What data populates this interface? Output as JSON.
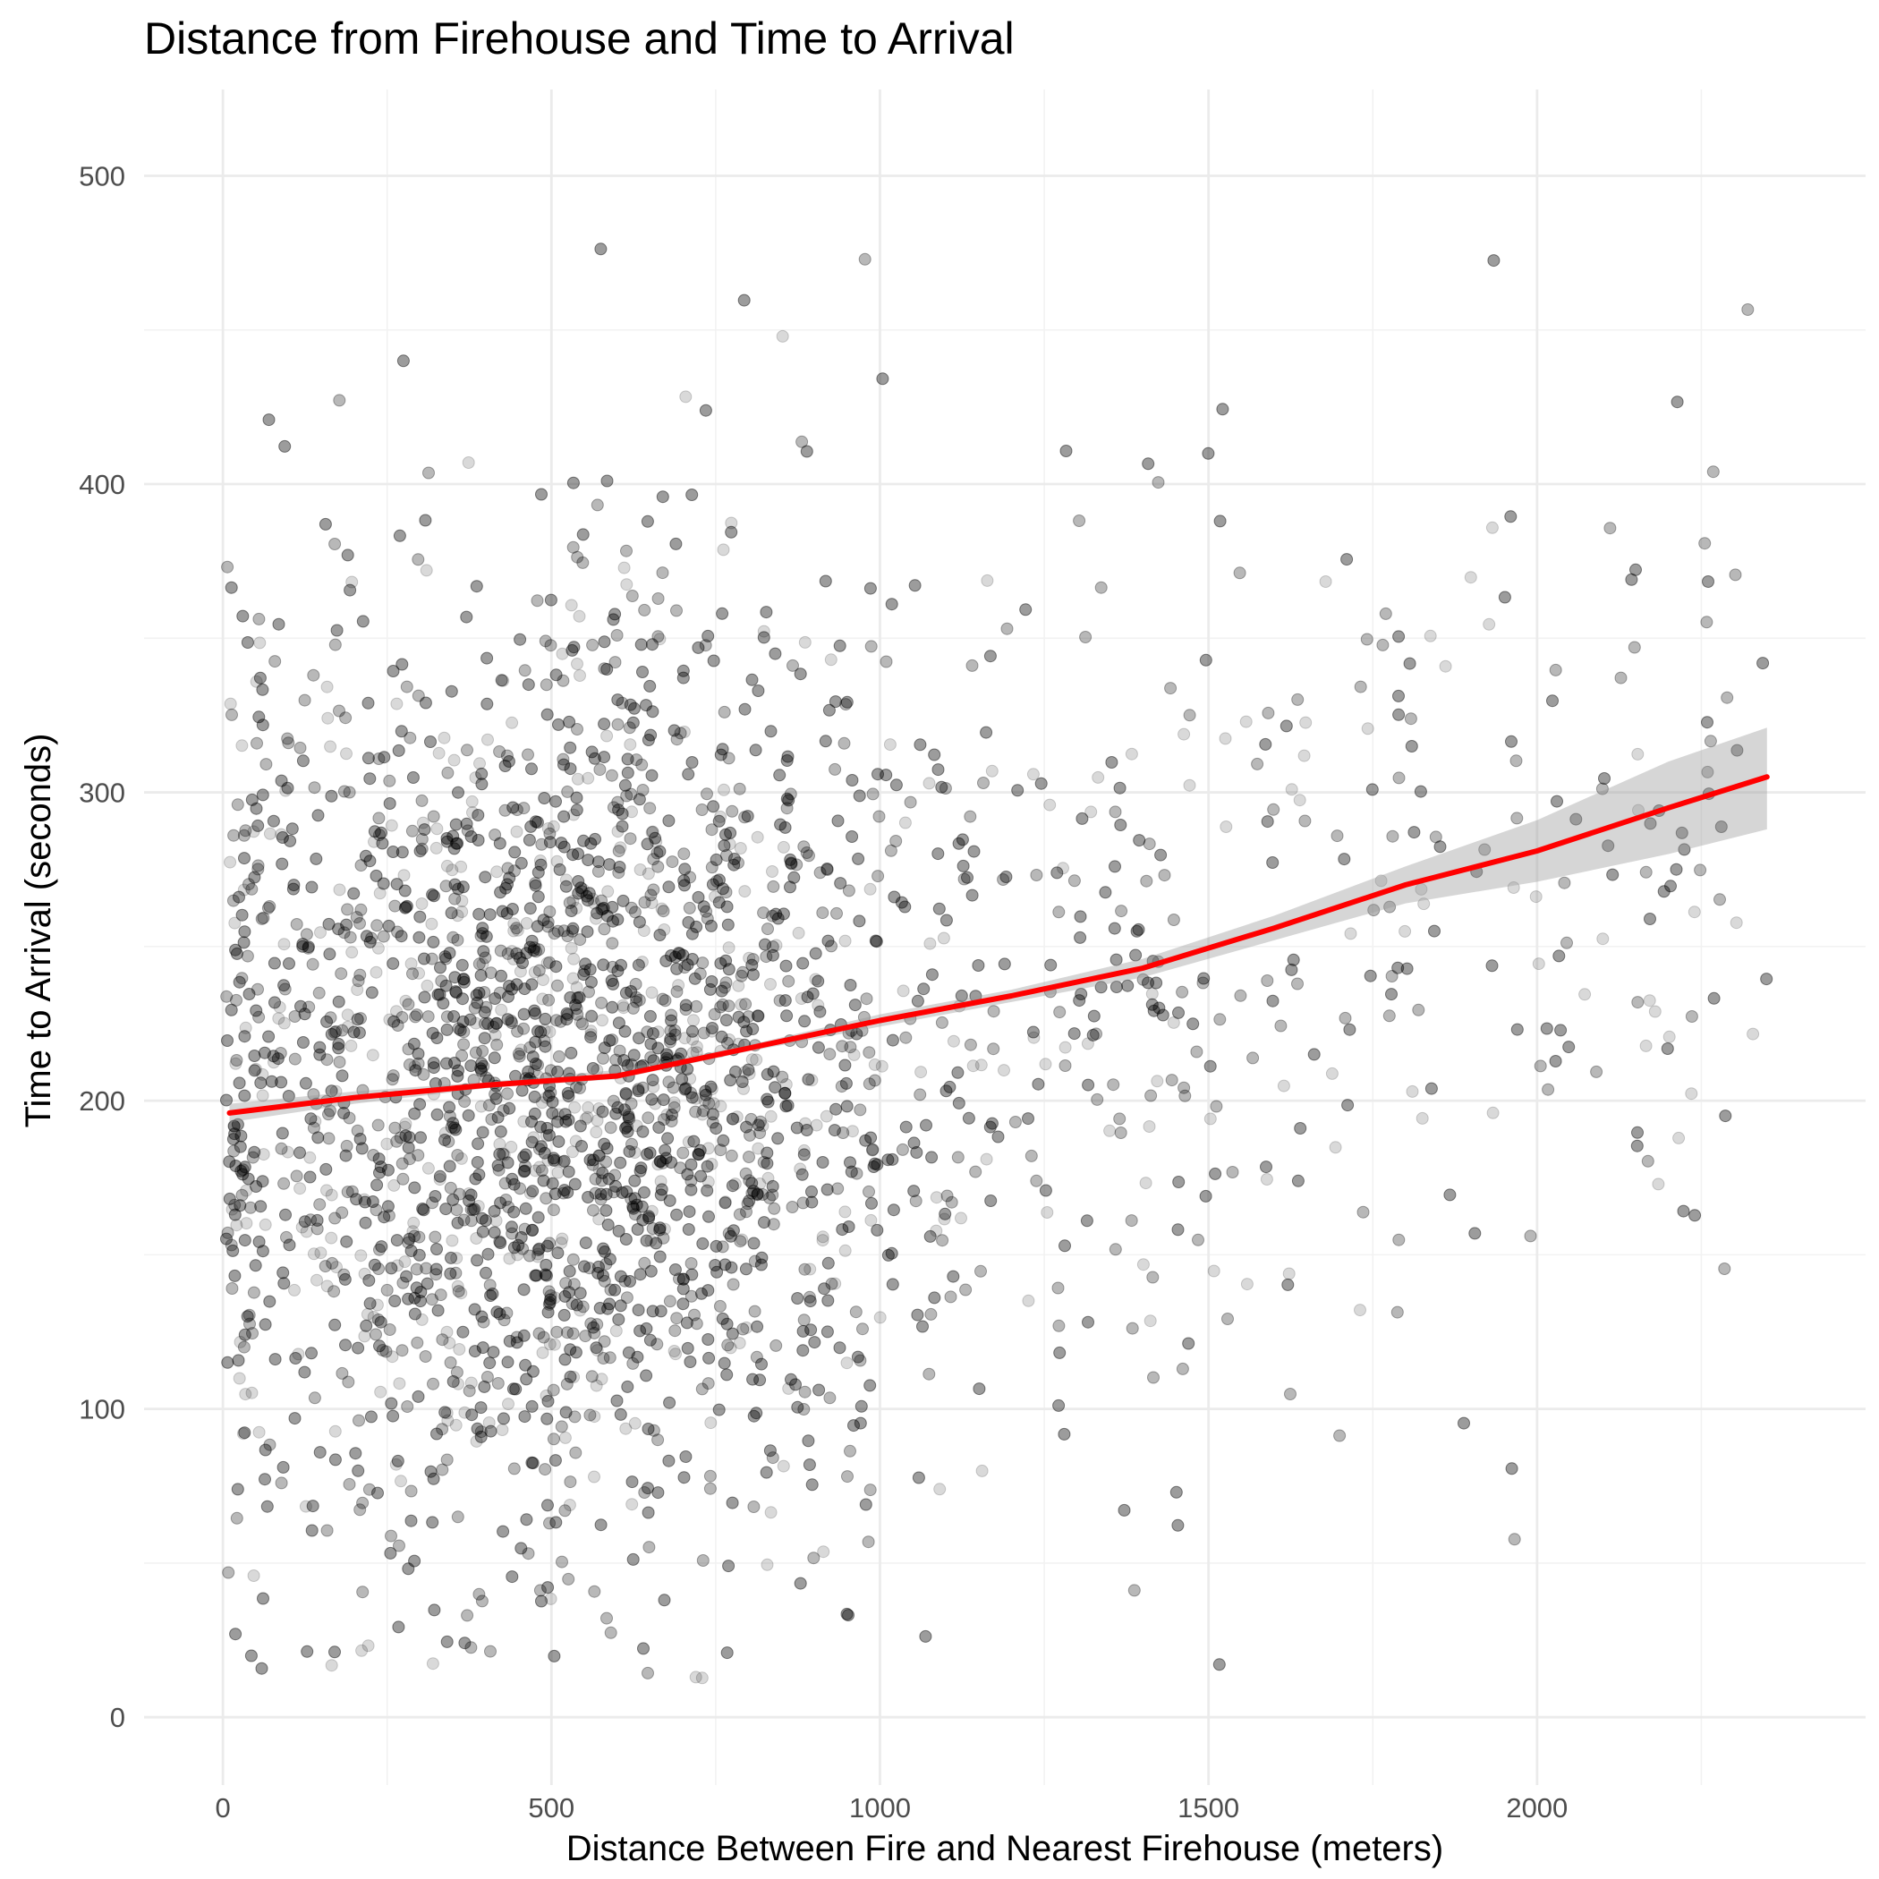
{
  "chart_data": {
    "type": "scatter",
    "title": "Distance from Firehouse and Time to Arrival",
    "xlabel": "Distance Between Fire and Nearest Firehouse (meters)",
    "ylabel": "Time to Arrival (seconds)",
    "xlim": [
      -120,
      2500
    ],
    "ylim": [
      -22,
      528
    ],
    "x_ticks": [
      0,
      500,
      1000,
      1500,
      2000
    ],
    "y_ticks": [
      0,
      100,
      200,
      300,
      400,
      500
    ],
    "grid": true,
    "legend": "none",
    "point_color": "#000000",
    "point_opacity": 0.15,
    "point_count_estimate": 6000,
    "cluster_peak": {
      "x": 480,
      "y": 200
    },
    "smooth_color": "#ff0000",
    "ribbon_color": "#999999",
    "smooth_x": [
      10,
      200,
      400,
      600,
      800,
      1000,
      1200,
      1400,
      1600,
      1800,
      2000,
      2200,
      2350
    ],
    "smooth_y": [
      196,
      201,
      205,
      208,
      217,
      226,
      234,
      243,
      256,
      270,
      281,
      295,
      305
    ],
    "smooth_ci_low": [
      193,
      199,
      204,
      207,
      216,
      224,
      232,
      240,
      252,
      264,
      271,
      280,
      288
    ],
    "smooth_ci_high": [
      199,
      203,
      206,
      210,
      218,
      228,
      236,
      246,
      260,
      276,
      291,
      310,
      321
    ]
  }
}
